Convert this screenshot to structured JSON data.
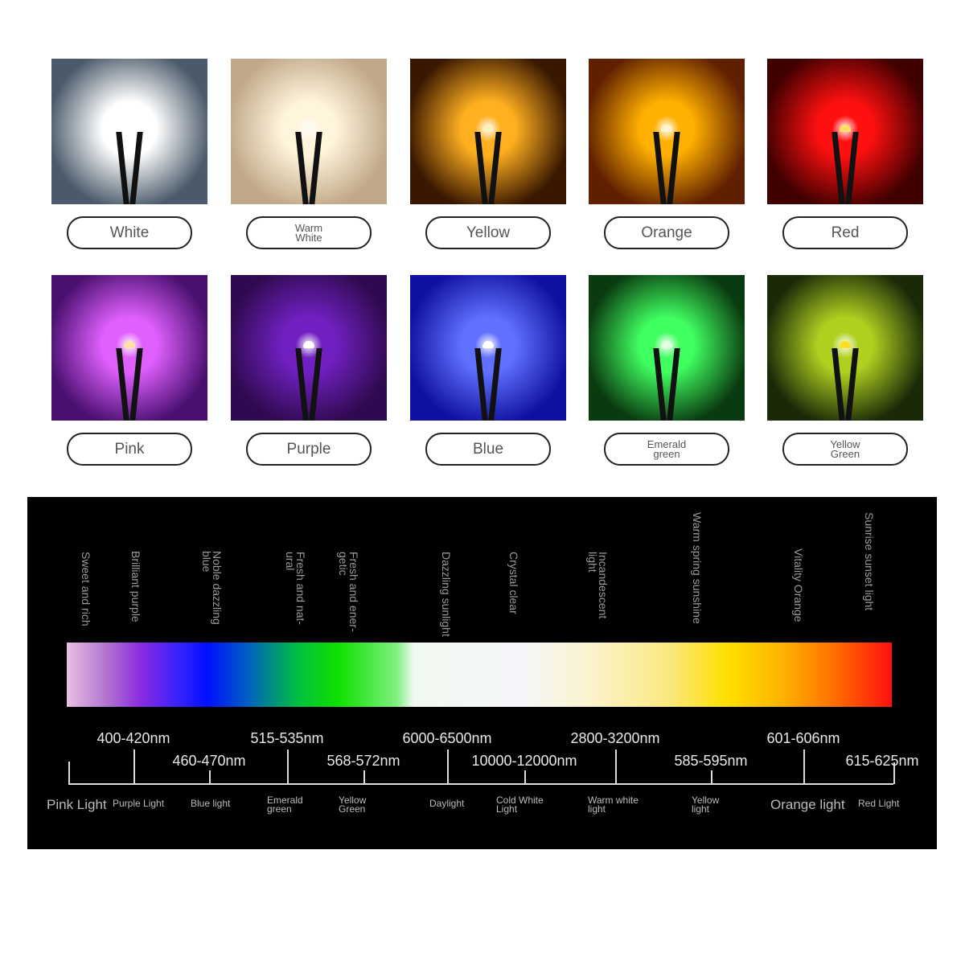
{
  "led_colors": [
    {
      "label": "White",
      "glow": "#ffffff",
      "bg": "#4a5a6a",
      "chip": "#ffffff"
    },
    {
      "label": "Warm\nWhite",
      "glow": "#fff4dc",
      "bg": "#c0a888",
      "chip": "#fffaf0"
    },
    {
      "label": "Yellow",
      "glow": "#ffb020",
      "bg": "#3a1800",
      "chip": "#fff0c0"
    },
    {
      "label": "Orange",
      "glow": "#ffb000",
      "bg": "#602000",
      "chip": "#fff4d0"
    },
    {
      "label": "Red",
      "glow": "#ff1010",
      "bg": "#400000",
      "chip": "#ffe060"
    },
    {
      "label": "Pink",
      "glow": "#e060ff",
      "bg": "#4a1070",
      "chip": "#ffe0a0"
    },
    {
      "label": "Purple",
      "glow": "#7020c0",
      "bg": "#300a50",
      "chip": "#ffffff"
    },
    {
      "label": "Blue",
      "glow": "#6070ff",
      "bg": "#1010a0",
      "chip": "#ffffff"
    },
    {
      "label": "Emerald\ngreen",
      "glow": "#40ff60",
      "bg": "#0a3a10",
      "chip": "#e0ffe0"
    },
    {
      "label": "Yellow\nGreen",
      "glow": "#b0d020",
      "bg": "#1a2a08",
      "chip": "#ffe020"
    }
  ],
  "spectrum": {
    "descriptions": [
      "Sweet and rich",
      "Brilliant purple",
      "Noble dazzling\nblue",
      "Fresh and nat-\nural",
      "Fresh and ener-\ngetic",
      "Dazzling sunlight",
      "Crystal clear",
      "Incandescent\nlight",
      "Warm spring sunshine",
      "Vitality Orange",
      "Sunrise sunset light"
    ],
    "ranges_upper": [
      "400-420nm",
      "515-535nm",
      "6000-6500nm",
      "2800-3200nm",
      "601-606nm"
    ],
    "ranges_lower": [
      "460-470nm",
      "568-572nm",
      "10000-12000nm",
      "585-595nm",
      "615-625nm"
    ],
    "light_names": [
      "Pink Light",
      "Purple Light",
      "Blue light",
      "Emerald\ngreen",
      "Yellow\nGreen",
      "Daylight",
      "Cold White\nLight",
      "Warm white\nlight",
      "Yellow\nlight",
      "Orange light",
      "Red Light"
    ]
  }
}
